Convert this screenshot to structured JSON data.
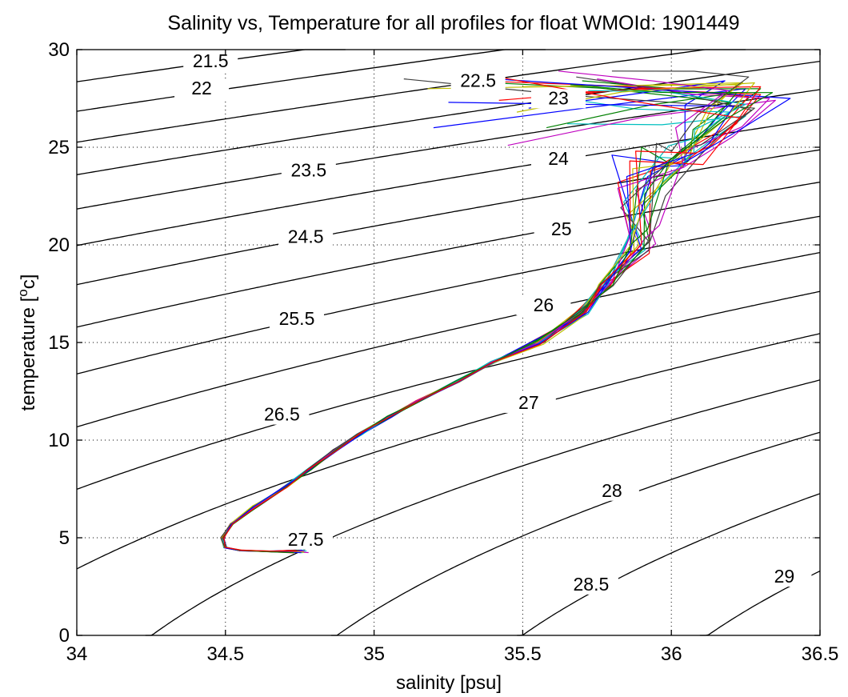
{
  "chart_data": {
    "type": "line",
    "title": "Salinity vs, Temperature for all profiles for float WMOId: 1901449",
    "xlabel": "salinity [psu]",
    "ylabel_main": "temperature [",
    "ylabel_sup": "o",
    "ylabel_end": "c]",
    "xlim": [
      34,
      36.5
    ],
    "ylim": [
      0,
      30
    ],
    "grid": true,
    "x_ticks": [
      {
        "v": 34,
        "label": "34"
      },
      {
        "v": 34.5,
        "label": "34.5"
      },
      {
        "v": 35,
        "label": "35"
      },
      {
        "v": 35.5,
        "label": "35.5"
      },
      {
        "v": 36,
        "label": "36"
      },
      {
        "v": 36.5,
        "label": "36.5"
      }
    ],
    "y_ticks": [
      {
        "v": 0,
        "label": "0"
      },
      {
        "v": 5,
        "label": "5"
      },
      {
        "v": 10,
        "label": "10"
      },
      {
        "v": 15,
        "label": "15"
      },
      {
        "v": 20,
        "label": "20"
      },
      {
        "v": 25,
        "label": "25"
      },
      {
        "v": 30,
        "label": "30"
      }
    ],
    "density_contours": [
      {
        "sigma": 21.5,
        "label": "21.5",
        "label_x": 34.45,
        "label_y": 29.1
      },
      {
        "sigma": 22,
        "label": "22",
        "label_x": 34.42,
        "label_y": 27.7
      },
      {
        "sigma": 22.5,
        "label": "22.5",
        "label_x": 35.35,
        "label_y": 28.1
      },
      {
        "sigma": 23,
        "label": "23",
        "label_x": 35.62,
        "label_y": 27.2
      },
      {
        "sigma": 23.5,
        "label": "23.5",
        "label_x": 34.78,
        "label_y": 23.5
      },
      {
        "sigma": 24,
        "label": "24",
        "label_x": 35.62,
        "label_y": 24.1
      },
      {
        "sigma": 24.5,
        "label": "24.5",
        "label_x": 34.77,
        "label_y": 20.1
      },
      {
        "sigma": 25,
        "label": "25",
        "label_x": 35.63,
        "label_y": 20.5
      },
      {
        "sigma": 25.5,
        "label": "25.5",
        "label_x": 34.74,
        "label_y": 15.9
      },
      {
        "sigma": 26,
        "label": "26",
        "label_x": 35.57,
        "label_y": 16.6
      },
      {
        "sigma": 26.5,
        "label": "26.5",
        "label_x": 34.69,
        "label_y": 11.0
      },
      {
        "sigma": 27,
        "label": "27",
        "label_x": 35.52,
        "label_y": 11.6
      },
      {
        "sigma": 27.5,
        "label": "27.5",
        "label_x": 34.77,
        "label_y": 4.6
      },
      {
        "sigma": 28,
        "label": "28",
        "label_x": 35.8,
        "label_y": 7.1
      },
      {
        "sigma": 28.5,
        "label": "28.5",
        "label_x": 35.73,
        "label_y": 2.3
      },
      {
        "sigma": 29,
        "label": "29",
        "label_x": 36.38,
        "label_y": 2.7
      }
    ],
    "profile_colors": [
      "#0000ff",
      "#008000",
      "#ff0000",
      "#00bfbf",
      "#bf00bf",
      "#bfbf00",
      "#404040"
    ],
    "profile_count": 24,
    "surface_points": [
      [
        35.2,
        26.0
      ],
      [
        35.4,
        28.3
      ],
      [
        35.55,
        27.7
      ],
      [
        35.65,
        26.2
      ],
      [
        35.45,
        25.1
      ],
      [
        35.18,
        28.0
      ],
      [
        35.1,
        28.5
      ],
      [
        35.52,
        27.0
      ],
      [
        35.7,
        28.4
      ],
      [
        35.35,
        28.4
      ],
      [
        35.6,
        27.6
      ],
      [
        35.75,
        28.5
      ],
      [
        35.5,
        28.1
      ],
      [
        35.68,
        28.6
      ],
      [
        35.3,
        28.6
      ],
      [
        35.58,
        26.0
      ],
      [
        35.42,
        27.4
      ],
      [
        35.72,
        27.9
      ],
      [
        35.62,
        28.9
      ],
      [
        35.48,
        26.8
      ],
      [
        35.8,
        28.9
      ],
      [
        35.25,
        27.3
      ],
      [
        35.66,
        28.2
      ],
      [
        35.38,
        28.7
      ]
    ],
    "surface_max": [
      [
        36.25,
        28.0
      ],
      [
        36.2,
        27.3
      ],
      [
        36.3,
        27.7
      ],
      [
        36.25,
        26.6
      ],
      [
        36.35,
        27.4
      ],
      [
        36.22,
        28.2
      ],
      [
        36.28,
        27.0
      ],
      [
        36.18,
        28.4
      ],
      [
        36.3,
        28.0
      ],
      [
        36.26,
        27.6
      ],
      [
        36.2,
        26.8
      ],
      [
        36.33,
        27.5
      ],
      [
        36.24,
        28.3
      ],
      [
        36.27,
        26.9
      ],
      [
        36.4,
        27.5
      ],
      [
        36.22,
        27.8
      ],
      [
        36.3,
        28.1
      ],
      [
        36.25,
        27.2
      ],
      [
        36.19,
        27.9
      ],
      [
        36.28,
        28.3
      ],
      [
        36.26,
        28.6
      ],
      [
        36.21,
        27.1
      ],
      [
        36.34,
        27.8
      ],
      [
        36.23,
        26.5
      ]
    ],
    "mid_points": [
      [
        35.92,
        23.5
      ],
      [
        35.9,
        22.0
      ],
      [
        35.82,
        23.2
      ],
      [
        35.95,
        24.5
      ],
      [
        35.88,
        22.8
      ],
      [
        35.85,
        21.5
      ],
      [
        35.98,
        22.5
      ],
      [
        35.8,
        24.6
      ],
      [
        35.9,
        25.0
      ],
      [
        35.93,
        23.8
      ],
      [
        35.84,
        22.2
      ],
      [
        35.96,
        21.0
      ],
      [
        35.87,
        23.9
      ],
      [
        35.83,
        21.9
      ],
      [
        35.94,
        24.0
      ],
      [
        35.91,
        22.6
      ],
      [
        35.86,
        24.3
      ],
      [
        35.97,
        23.2
      ],
      [
        35.82,
        22.9
      ],
      [
        35.89,
        21.3
      ],
      [
        35.95,
        25.2
      ],
      [
        35.85,
        23.5
      ],
      [
        35.92,
        20.8
      ],
      [
        35.88,
        24.8
      ]
    ],
    "trunk": [
      [
        35.78,
        18.0
      ],
      [
        35.7,
        16.5
      ],
      [
        35.55,
        15.0
      ],
      [
        35.4,
        14.0
      ],
      [
        35.28,
        13.0
      ],
      [
        35.15,
        12.0
      ],
      [
        35.05,
        11.2
      ],
      [
        34.95,
        10.3
      ],
      [
        34.87,
        9.5
      ],
      [
        34.78,
        8.5
      ],
      [
        34.7,
        7.6
      ],
      [
        34.6,
        6.6
      ],
      [
        34.52,
        5.7
      ],
      [
        34.49,
        5.0
      ],
      [
        34.5,
        4.5
      ],
      [
        34.55,
        4.35
      ],
      [
        34.65,
        4.3
      ]
    ],
    "end_salinity_range": [
      34.72,
      34.78
    ]
  }
}
